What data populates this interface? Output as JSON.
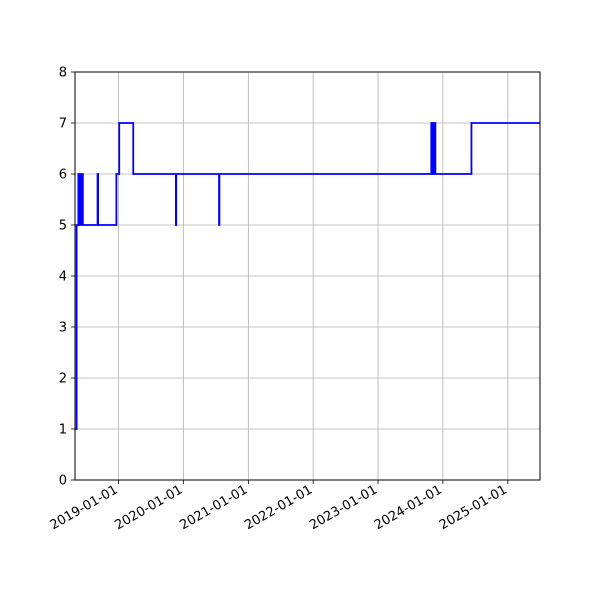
{
  "chart_data": {
    "type": "line",
    "title": "",
    "xlabel": "",
    "ylabel": "",
    "x_axis": "date",
    "xlim": [
      "2018-05-01",
      "2025-07-01"
    ],
    "ylim": [
      0,
      8
    ],
    "y_ticks": [
      0,
      1,
      2,
      3,
      4,
      5,
      6,
      7,
      8
    ],
    "x_ticks": [
      "2019-01-01",
      "2020-01-01",
      "2021-01-01",
      "2022-01-01",
      "2023-01-01",
      "2024-01-01",
      "2025-01-01"
    ],
    "x_tick_rotation_deg": 30,
    "grid": true,
    "legend": "none",
    "line_color": "#0000ff",
    "grid_color": "#b0b0b0",
    "series": [
      {
        "step": "post",
        "points": [
          [
            "2018-05-01",
            1
          ],
          [
            "2018-05-10",
            5
          ],
          [
            "2018-05-20",
            6
          ],
          [
            "2018-05-24",
            5
          ],
          [
            "2018-05-28",
            6
          ],
          [
            "2018-06-01",
            5
          ],
          [
            "2018-06-04",
            6
          ],
          [
            "2018-06-07",
            5
          ],
          [
            "2018-06-10",
            6
          ],
          [
            "2018-06-14",
            5
          ],
          [
            "2018-09-05",
            6
          ],
          [
            "2018-09-08",
            5
          ],
          [
            "2018-12-20",
            6
          ],
          [
            "2019-01-05",
            7
          ],
          [
            "2019-03-25",
            6
          ],
          [
            "2019-11-20",
            5
          ],
          [
            "2019-11-22",
            6
          ],
          [
            "2020-07-20",
            5
          ],
          [
            "2020-07-22",
            6
          ],
          [
            "2023-10-28",
            7
          ],
          [
            "2023-11-02",
            6
          ],
          [
            "2023-11-05",
            7
          ],
          [
            "2023-11-10",
            6
          ],
          [
            "2023-11-13",
            7
          ],
          [
            "2023-11-20",
            6
          ],
          [
            "2024-06-10",
            7
          ],
          [
            "2025-07-01",
            7
          ]
        ]
      }
    ]
  }
}
